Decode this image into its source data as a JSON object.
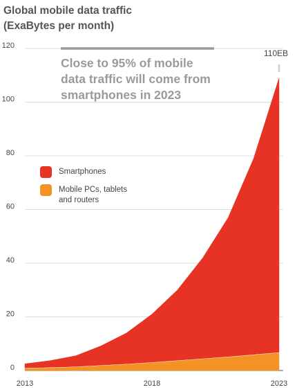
{
  "chart_data": {
    "type": "area",
    "stacked": true,
    "title": [
      "Global mobile data traffic",
      "(ExaBytes per month)"
    ],
    "x": [
      2013,
      2014,
      2015,
      2016,
      2017,
      2018,
      2019,
      2020,
      2021,
      2022,
      2023
    ],
    "x_tick_labels": [
      "2013",
      "2018",
      "2023"
    ],
    "y_tick_labels": [
      "0",
      "20",
      "40",
      "60",
      "80",
      "100",
      "120"
    ],
    "ylim": [
      0,
      120
    ],
    "grid": "horizontal",
    "series": [
      {
        "name": "Mobile PCs, tablets and routers",
        "name_lines": [
          "Mobile PCs, tablets",
          "and routers"
        ],
        "color": "#f39325",
        "values": [
          1.0,
          1.2,
          1.5,
          2.0,
          2.5,
          3.1,
          3.8,
          4.5,
          5.2,
          6.0,
          6.8
        ]
      },
      {
        "name": "Smartphones",
        "name_lines": [
          "Smartphones"
        ],
        "color": "#e63323",
        "values": [
          1.5,
          2.5,
          4.0,
          7.2,
          11.5,
          17.9,
          26.2,
          37.5,
          51.8,
          73.0,
          102.2
        ]
      }
    ],
    "annotations": {
      "callout_lines": [
        "Close to 95% of mobile",
        "data traffic will come from",
        "smartphones in 2023"
      ],
      "total_label": "110EB"
    }
  }
}
